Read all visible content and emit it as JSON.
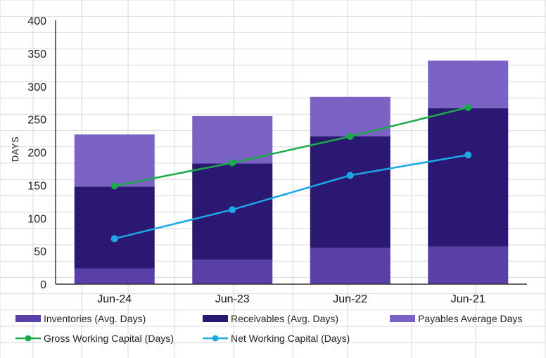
{
  "chart_data": {
    "type": "bar",
    "stacked": true,
    "categories": [
      "Jun-24",
      "Jun-23",
      "Jun-22",
      "Jun-21"
    ],
    "series": [
      {
        "name": "Inventories (Avg. Days)",
        "kind": "bar",
        "color": "#5B3FA8",
        "values": [
          24,
          37,
          55,
          57
        ]
      },
      {
        "name": "Receivables (Avg. Days)",
        "kind": "bar",
        "color": "#2B1872",
        "values": [
          124,
          146,
          169,
          210
        ]
      },
      {
        "name": "Payables Average Days",
        "kind": "bar",
        "color": "#7B63C6",
        "values": [
          79,
          72,
          60,
          72
        ]
      },
      {
        "name": "Gross Working Capital (Days)",
        "kind": "line",
        "color": "#1BAA4A",
        "values": [
          149,
          184,
          224,
          268
        ]
      },
      {
        "name": "Net Working Capital (Days)",
        "kind": "line",
        "color": "#1BA8E6",
        "values": [
          69,
          113,
          165,
          196
        ]
      }
    ],
    "ylabel": "DAYS",
    "xlabel": "",
    "ylim": [
      0,
      400
    ],
    "yticks": [
      0,
      50,
      100,
      150,
      200,
      250,
      300,
      350,
      400
    ],
    "grid": true,
    "legend_position": "bottom"
  }
}
